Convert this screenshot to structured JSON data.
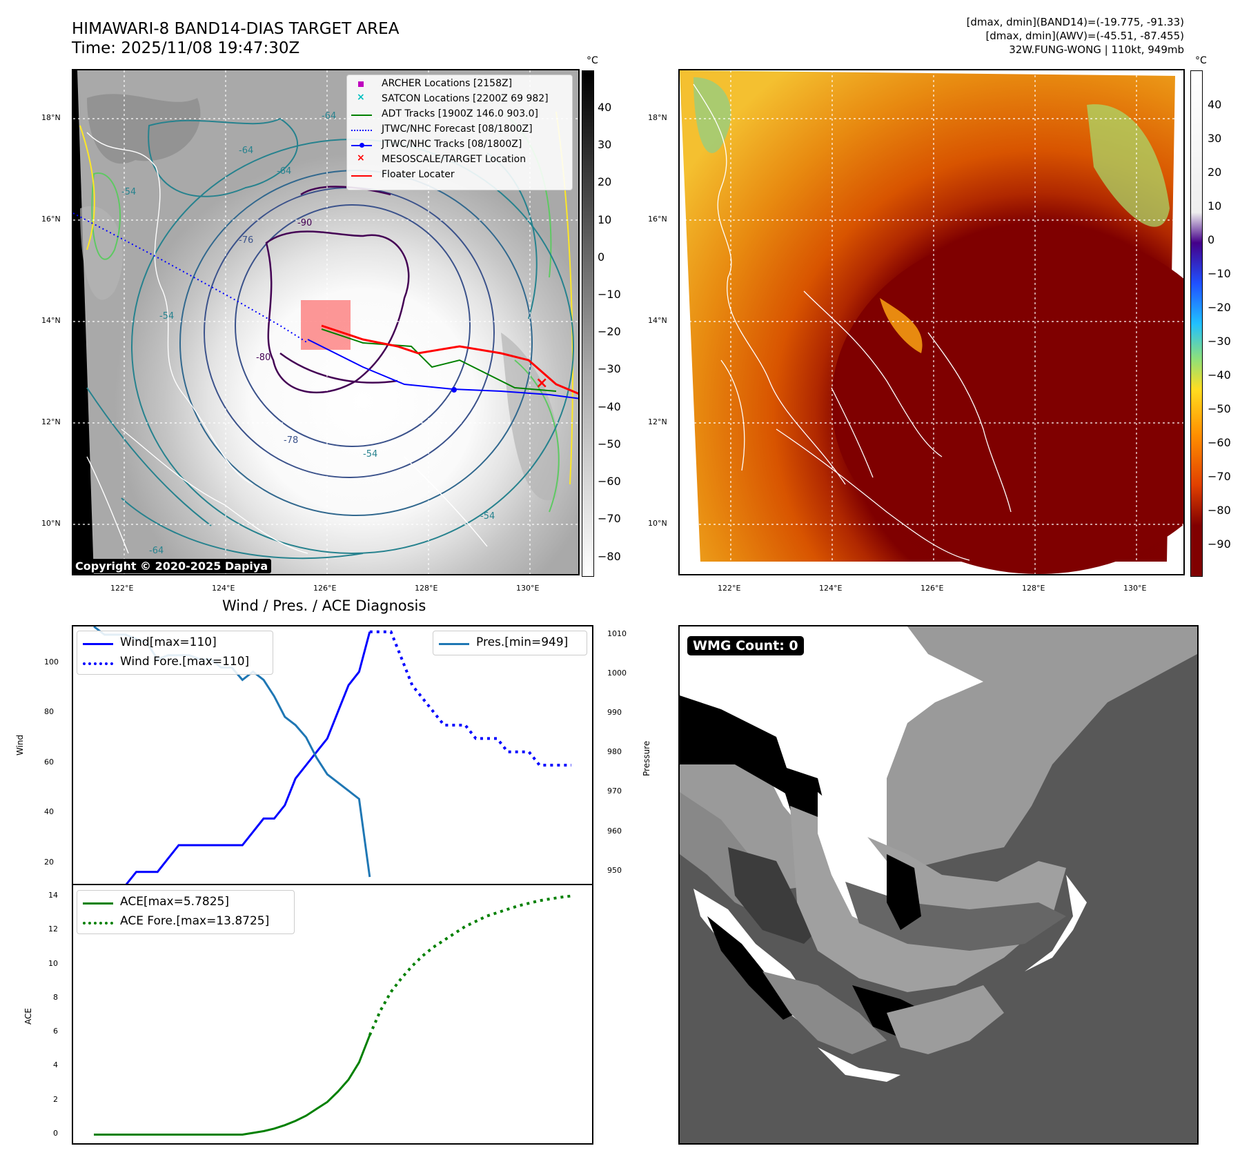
{
  "header": {
    "title_line1": "HIMAWARI-8 BAND14-DIAS TARGET AREA",
    "title_line2": "Time: 2025/11/08 19:47:30Z",
    "info_line1": "[dmax, dmin](BAND14)=(-19.775, -91.33)",
    "info_line2": "[dmax, dmin](AWV)=(-45.51, -87.455)",
    "info_line3": "32W.FUNG-WONG | 110kt, 949mb"
  },
  "colors": {
    "wind": "#0000ff",
    "pressure": "#1f77b4",
    "ace": "#008000",
    "track_red": "#ff0000",
    "adt_green": "#008000",
    "archer_magenta": "#bf00bf",
    "satcon_cyan": "#00bfbf"
  },
  "map_left": {
    "lat_ticks": [
      "18°N",
      "16°N",
      "14°N",
      "12°N",
      "10°N"
    ],
    "lon_ticks": [
      "122°E",
      "124°E",
      "126°E",
      "128°E",
      "130°E"
    ],
    "colorbar_unit": "°C",
    "colorbar_ticks": [
      "40",
      "30",
      "20",
      "10",
      "0",
      "−10",
      "−20",
      "−30",
      "−40",
      "−50",
      "−60",
      "−70",
      "−80"
    ],
    "copyright": "Copyright © 2020-2025 Dapiya",
    "legend": [
      {
        "label": "ARCHER Locations [2158Z]",
        "marker": "square"
      },
      {
        "label": "SATCON Locations [2200Z 69 982]",
        "marker": "x-cyan"
      },
      {
        "label": "ADT Tracks [1900Z 146.0 903.0]",
        "marker": "line-green"
      },
      {
        "label": "JTWC/NHC Forecast [08/1800Z]",
        "marker": "dotted-blue"
      },
      {
        "label": "JTWC/NHC Tracks [08/1800Z]",
        "marker": "line-dot-blue"
      },
      {
        "label": "MESOSCALE/TARGET Location",
        "marker": "x-red"
      },
      {
        "label": "Floater Locater",
        "marker": "line-red"
      }
    ],
    "contour_labels": [
      "-54",
      "-64",
      "-76",
      "-90",
      "-78",
      "-80",
      "-54",
      "-64",
      "-54",
      "-64",
      "-54",
      "-64"
    ]
  },
  "map_right": {
    "lat_ticks": [
      "18°N",
      "16°N",
      "14°N",
      "12°N",
      "10°N"
    ],
    "lon_ticks": [
      "122°E",
      "124°E",
      "126°E",
      "128°E",
      "130°E"
    ],
    "colorbar_unit": "°C",
    "colorbar_ticks": [
      "40",
      "30",
      "20",
      "10",
      "0",
      "−10",
      "−20",
      "−30",
      "−40",
      "−50",
      "−60",
      "−70",
      "−80",
      "−90"
    ]
  },
  "diagnosis": {
    "title": "Wind / Pres. / ACE Diagnosis",
    "wind_ylabel": "Wind",
    "pres_ylabel": "Pressure",
    "ace_ylabel": "ACE",
    "wind_legend": [
      "Wind[max=110]",
      "Wind Fore.[max=110]"
    ],
    "pres_legend": "Pres.[min=949]",
    "ace_legend": [
      "ACE[max=5.7825]",
      "ACE Fore.[max=13.8725]"
    ],
    "wind_ticks": [
      "100",
      "80",
      "60",
      "40",
      "20"
    ],
    "pres_ticks": [
      "1010",
      "1000",
      "990",
      "980",
      "970",
      "960",
      "950"
    ],
    "ace_ticks": [
      "14",
      "12",
      "10",
      "8",
      "6",
      "4",
      "2",
      "0"
    ]
  },
  "wmg": {
    "label": "WMG Count: 0"
  },
  "chart_data": [
    {
      "type": "line",
      "title": "Wind / Pres. / ACE Diagnosis",
      "ylabel": "Wind",
      "ylim": [
        15,
        112
      ],
      "x_index_range": [
        0,
        45
      ],
      "series": [
        {
          "name": "Wind[max=110]",
          "x": [
            0,
            1,
            2,
            3,
            4,
            5,
            6,
            7,
            8,
            9,
            10,
            11,
            12,
            13,
            14,
            15,
            16,
            17,
            18,
            19,
            20,
            21,
            22,
            23,
            24,
            25,
            26
          ],
          "values": [
            15,
            15,
            15,
            15,
            20,
            20,
            20,
            25,
            30,
            30,
            30,
            30,
            30,
            30,
            30,
            35,
            40,
            40,
            45,
            55,
            60,
            65,
            70,
            80,
            90,
            95,
            110
          ]
        },
        {
          "name": "Wind Fore.[max=110]",
          "style": "dotted",
          "x": [
            26,
            27,
            28,
            29,
            30,
            31,
            32,
            33,
            34,
            35,
            36,
            37,
            38,
            39,
            40,
            41,
            42,
            43,
            44,
            45
          ],
          "values": [
            110,
            110,
            110,
            100,
            90,
            85,
            80,
            75,
            75,
            75,
            70,
            70,
            70,
            65,
            65,
            65,
            60,
            60,
            60,
            60
          ]
        }
      ]
    },
    {
      "type": "line",
      "ylabel": "Pressure",
      "ylim": [
        947,
        1010
      ],
      "series": [
        {
          "name": "Pres.[min=949]",
          "x": [
            0,
            1,
            2,
            3,
            4,
            5,
            6,
            7,
            8,
            9,
            10,
            11,
            12,
            13,
            14,
            15,
            16,
            17,
            18,
            19,
            20,
            21,
            22,
            23,
            24,
            25,
            26
          ],
          "values": [
            1010,
            1008,
            1008,
            1008,
            1007,
            1006,
            1002,
            1003,
            1003,
            1003,
            1002,
            1002,
            1000,
            1000,
            997,
            999,
            997,
            993,
            988,
            986,
            983,
            978,
            974,
            972,
            970,
            968,
            949
          ]
        }
      ]
    },
    {
      "type": "line",
      "ylabel": "ACE",
      "ylim": [
        -0.5,
        14.5
      ],
      "series": [
        {
          "name": "ACE[max=5.7825]",
          "x": [
            0,
            2,
            4,
            6,
            8,
            10,
            12,
            13,
            14,
            15,
            16,
            17,
            18,
            19,
            20,
            21,
            22,
            23,
            24,
            25,
            26
          ],
          "values": [
            0,
            0,
            0,
            0,
            0,
            0,
            0,
            0,
            0,
            0.1,
            0.2,
            0.35,
            0.55,
            0.8,
            1.1,
            1.5,
            1.9,
            2.5,
            3.2,
            4.2,
            5.7825
          ]
        },
        {
          "name": "ACE Fore.[max=13.8725]",
          "style": "dotted",
          "x": [
            26,
            27,
            28,
            29,
            30,
            31,
            32,
            33,
            34,
            35,
            36,
            37,
            38,
            39,
            40,
            41,
            42,
            43,
            44,
            45
          ],
          "values": [
            5.7825,
            7.2,
            8.3,
            9.1,
            9.8,
            10.4,
            10.9,
            11.3,
            11.7,
            12.1,
            12.4,
            12.7,
            12.9,
            13.1,
            13.3,
            13.45,
            13.6,
            13.7,
            13.8,
            13.8725
          ]
        }
      ]
    }
  ]
}
